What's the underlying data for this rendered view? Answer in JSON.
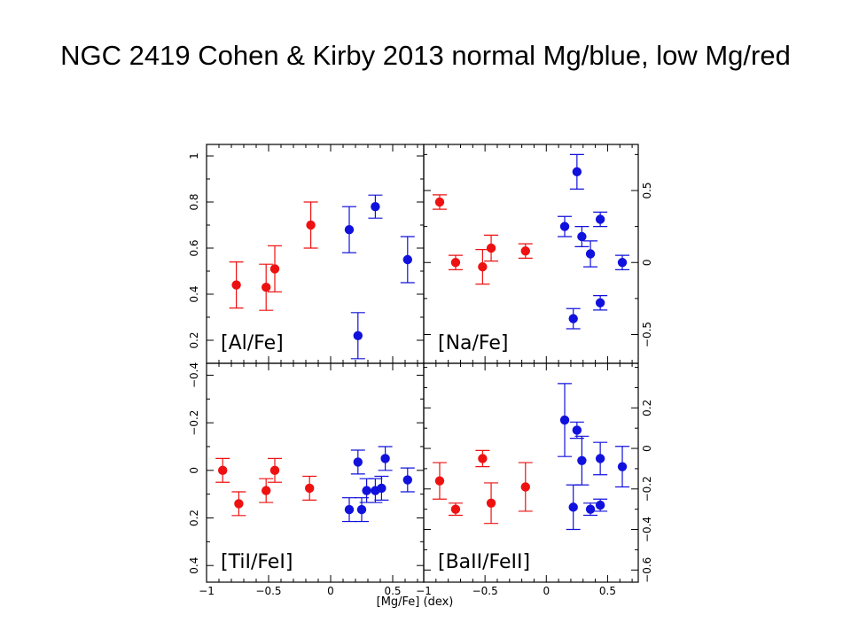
{
  "slide": {
    "title": "NGC 2419  Cohen & Kirby 2013 normal Mg/blue, low Mg/red"
  },
  "chart_data": {
    "type": "scatter",
    "xlabel": "[Mg/Fe]  (dex)",
    "colors": {
      "red": "#ee1111",
      "blue": "#1111dd"
    },
    "panels": [
      {
        "id": "al",
        "label": "[Al/Fe]",
        "xlim": [
          -1,
          0.75
        ],
        "ylim": [
          0.1,
          1.05
        ],
        "y_axis_side": "left",
        "y_ticks": [
          0.2,
          0.4,
          0.6,
          0.8,
          1
        ],
        "y_tick_labels": [
          "0.2",
          "0.4",
          "0.6",
          "0.8",
          "1"
        ],
        "x_ticks": [
          -1,
          -0.5,
          0,
          0.5
        ],
        "series": [
          {
            "color": "red",
            "points": [
              {
                "x": -0.76,
                "y": 0.44,
                "err": 0.1
              },
              {
                "x": -0.52,
                "y": 0.43,
                "err": 0.1
              },
              {
                "x": -0.45,
                "y": 0.51,
                "err": 0.1
              },
              {
                "x": -0.16,
                "y": 0.7,
                "err": 0.1
              }
            ]
          },
          {
            "color": "blue",
            "points": [
              {
                "x": 0.15,
                "y": 0.68,
                "err": 0.1
              },
              {
                "x": 0.22,
                "y": 0.22,
                "err": 0.1
              },
              {
                "x": 0.36,
                "y": 0.78,
                "err": 0.05
              },
              {
                "x": 0.62,
                "y": 0.55,
                "err": 0.1
              }
            ]
          }
        ]
      },
      {
        "id": "na",
        "label": "[Na/Fe]",
        "xlim": [
          -1,
          0.75
        ],
        "ylim": [
          -0.7,
          0.82
        ],
        "y_axis_side": "right",
        "y_ticks": [
          -0.5,
          0,
          0.5
        ],
        "y_tick_labels": [
          "−0.5",
          "0",
          "0.5"
        ],
        "x_ticks": [
          -1,
          -0.5,
          0,
          0.5
        ],
        "series": [
          {
            "color": "red",
            "points": [
              {
                "x": -0.87,
                "y": 0.42,
                "err": 0.05
              },
              {
                "x": -0.74,
                "y": 0.0,
                "err": 0.05
              },
              {
                "x": -0.52,
                "y": -0.03,
                "err": 0.12
              },
              {
                "x": -0.45,
                "y": 0.1,
                "err": 0.09
              },
              {
                "x": -0.17,
                "y": 0.08,
                "err": 0.05
              }
            ]
          },
          {
            "color": "blue",
            "points": [
              {
                "x": 0.15,
                "y": 0.25,
                "err": 0.07
              },
              {
                "x": 0.22,
                "y": -0.39,
                "err": 0.07
              },
              {
                "x": 0.25,
                "y": 0.63,
                "err": 0.12
              },
              {
                "x": 0.29,
                "y": 0.18,
                "err": 0.07
              },
              {
                "x": 0.36,
                "y": 0.06,
                "err": 0.09
              },
              {
                "x": 0.44,
                "y": 0.3,
                "err": 0.05
              },
              {
                "x": 0.44,
                "y": -0.28,
                "err": 0.05
              },
              {
                "x": 0.62,
                "y": 0.0,
                "err": 0.05
              }
            ]
          }
        ]
      },
      {
        "id": "ti",
        "label": "[TiI/FeI]",
        "xlim": [
          -1,
          0.75
        ],
        "ylim": [
          0.47,
          -0.45
        ],
        "y_axis_side": "left",
        "y_ticks": [
          -0.4,
          -0.2,
          0,
          0.2,
          0.4
        ],
        "y_tick_labels": [
          "−0.4",
          "−0.2",
          "0",
          "0.2",
          "0.4"
        ],
        "x_ticks": [
          -1,
          -0.5,
          0,
          0.5
        ],
        "series": [
          {
            "color": "red",
            "points": [
              {
                "x": -0.87,
                "y": 0.0,
                "err": 0.05
              },
              {
                "x": -0.74,
                "y": 0.14,
                "err": 0.05
              },
              {
                "x": -0.52,
                "y": 0.085,
                "err": 0.05
              },
              {
                "x": -0.45,
                "y": 0.0,
                "err": 0.05
              },
              {
                "x": -0.17,
                "y": 0.075,
                "err": 0.05
              }
            ]
          },
          {
            "color": "blue",
            "points": [
              {
                "x": 0.15,
                "y": 0.165,
                "err": 0.05
              },
              {
                "x": 0.22,
                "y": -0.035,
                "err": 0.05
              },
              {
                "x": 0.25,
                "y": 0.165,
                "err": 0.05
              },
              {
                "x": 0.29,
                "y": 0.085,
                "err": 0.05
              },
              {
                "x": 0.36,
                "y": 0.085,
                "err": 0.05
              },
              {
                "x": 0.41,
                "y": 0.075,
                "err": 0.05
              },
              {
                "x": 0.44,
                "y": -0.05,
                "err": 0.05
              },
              {
                "x": 0.62,
                "y": 0.04,
                "err": 0.05
              }
            ]
          }
        ]
      },
      {
        "id": "ba",
        "label": "[BaII/FeII]",
        "xlim": [
          -1,
          0.75
        ],
        "ylim": [
          -0.66,
          0.42
        ],
        "y_axis_side": "right",
        "y_ticks": [
          -0.6,
          -0.4,
          -0.2,
          0,
          0.2
        ],
        "y_tick_labels": [
          "−0.6",
          "−0.4",
          "−0.2",
          "0",
          "0.2"
        ],
        "x_ticks": [
          -1,
          -0.5,
          0,
          0.5
        ],
        "series": [
          {
            "color": "red",
            "points": [
              {
                "x": -0.87,
                "y": -0.16,
                "err": 0.09
              },
              {
                "x": -0.74,
                "y": -0.3,
                "err": 0.03
              },
              {
                "x": -0.52,
                "y": -0.05,
                "err": 0.04
              },
              {
                "x": -0.45,
                "y": -0.27,
                "err": 0.1
              },
              {
                "x": -0.17,
                "y": -0.19,
                "err": 0.12
              }
            ]
          },
          {
            "color": "blue",
            "points": [
              {
                "x": 0.15,
                "y": 0.14,
                "err": 0.18
              },
              {
                "x": 0.22,
                "y": -0.29,
                "err": 0.11
              },
              {
                "x": 0.25,
                "y": 0.09,
                "err": 0.04
              },
              {
                "x": 0.29,
                "y": -0.06,
                "err": 0.12
              },
              {
                "x": 0.36,
                "y": -0.3,
                "err": 0.03
              },
              {
                "x": 0.44,
                "y": -0.05,
                "err": 0.08
              },
              {
                "x": 0.44,
                "y": -0.28,
                "err": 0.03
              },
              {
                "x": 0.62,
                "y": -0.09,
                "err": 0.1
              }
            ]
          }
        ]
      }
    ]
  }
}
